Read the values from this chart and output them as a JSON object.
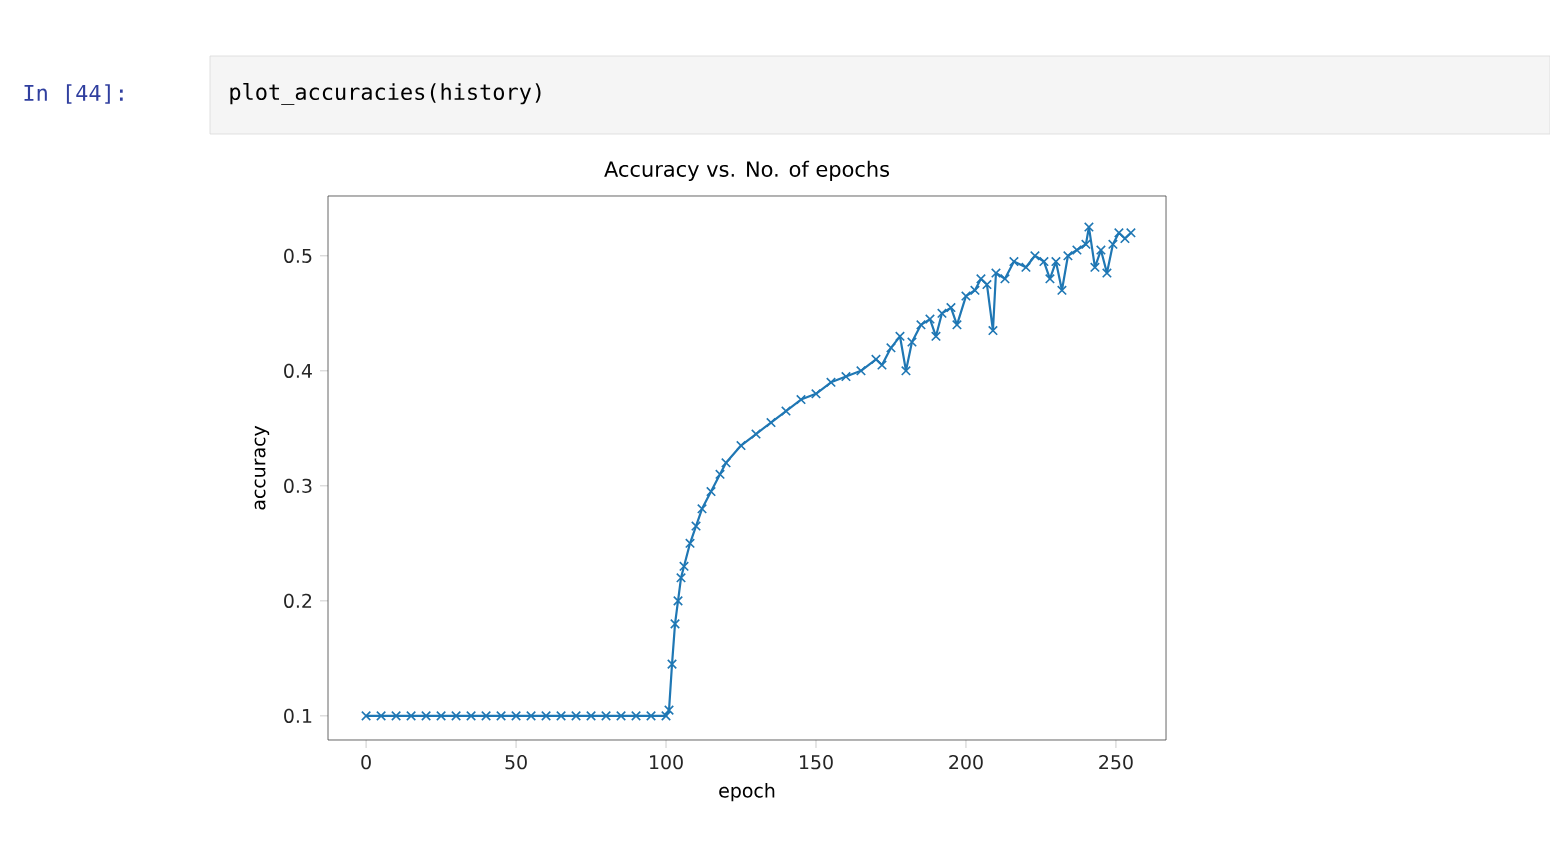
{
  "chart_data": {
    "type": "line",
    "title": "Accuracy vs. No. of epochs",
    "xlabel": "epoch",
    "ylabel": "accuracy",
    "annotations": [
      "In [44]:",
      "plot_accuracies(history)"
    ],
    "xlim": [
      -12.7,
      266.7
    ],
    "ylim": [
      0.079,
      0.552
    ],
    "xticks": [
      0,
      50,
      100,
      150,
      200,
      250
    ],
    "yticks": [
      0.1,
      0.2,
      0.3,
      0.4,
      0.5
    ],
    "marker": "cross",
    "line_style": "solid",
    "series": [
      {
        "color": "#1f77b4",
        "x": [
          0,
          5,
          10,
          15,
          20,
          25,
          30,
          35,
          40,
          45,
          50,
          55,
          60,
          65,
          70,
          75,
          80,
          85,
          90,
          95,
          100,
          101,
          102,
          103,
          104,
          105,
          106,
          108,
          110,
          112,
          115,
          118,
          120,
          125,
          130,
          135,
          140,
          145,
          150,
          155,
          160,
          165,
          170,
          172,
          175,
          178,
          180,
          182,
          185,
          188,
          190,
          192,
          195,
          197,
          200,
          203,
          205,
          207,
          209,
          210,
          213,
          216,
          220,
          223,
          226,
          228,
          230,
          232,
          234,
          237,
          240,
          241,
          243,
          245,
          247,
          249,
          251,
          253,
          255
        ],
        "values": [
          0.1,
          0.1,
          0.1,
          0.1,
          0.1,
          0.1,
          0.1,
          0.1,
          0.1,
          0.1,
          0.1,
          0.1,
          0.1,
          0.1,
          0.1,
          0.1,
          0.1,
          0.1,
          0.1,
          0.1,
          0.1,
          0.105,
          0.145,
          0.18,
          0.2,
          0.22,
          0.23,
          0.25,
          0.265,
          0.28,
          0.295,
          0.31,
          0.32,
          0.335,
          0.345,
          0.355,
          0.365,
          0.375,
          0.38,
          0.39,
          0.395,
          0.4,
          0.41,
          0.405,
          0.42,
          0.43,
          0.4,
          0.425,
          0.44,
          0.445,
          0.43,
          0.45,
          0.455,
          0.44,
          0.465,
          0.47,
          0.48,
          0.475,
          0.435,
          0.485,
          0.48,
          0.495,
          0.49,
          0.5,
          0.495,
          0.48,
          0.495,
          0.47,
          0.5,
          0.505,
          0.51,
          0.525,
          0.49,
          0.505,
          0.485,
          0.51,
          0.52,
          0.515,
          0.52
        ]
      }
    ]
  }
}
